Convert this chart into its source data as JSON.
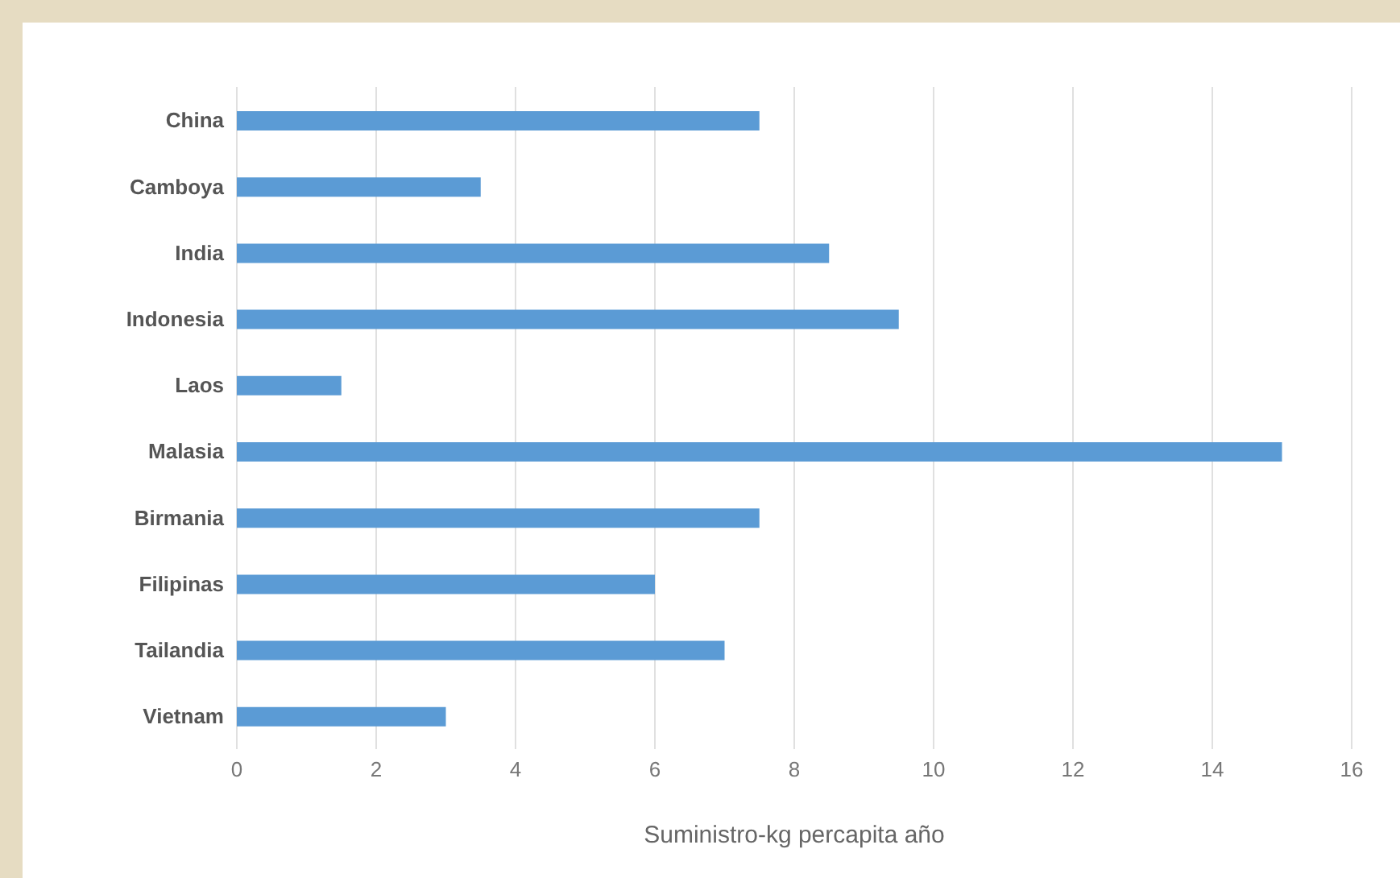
{
  "chart_data": {
    "type": "bar",
    "orientation": "horizontal",
    "xlabel": "Suministro-kg percapita año",
    "categories": [
      "China",
      "Camboya",
      "India",
      "Indonesia",
      "Laos",
      "Malasia",
      "Birmania",
      "Filipinas",
      "Tailandia",
      "Vietnam"
    ],
    "values": [
      7.5,
      3.5,
      8.5,
      9.5,
      1.5,
      15,
      7.5,
      6,
      7,
      3
    ],
    "color": "#5b9bd5",
    "xlim": [
      0,
      16
    ],
    "xticks": [
      0,
      2,
      4,
      6,
      8,
      10,
      12,
      14,
      16
    ],
    "grid": "x",
    "legend": false
  }
}
